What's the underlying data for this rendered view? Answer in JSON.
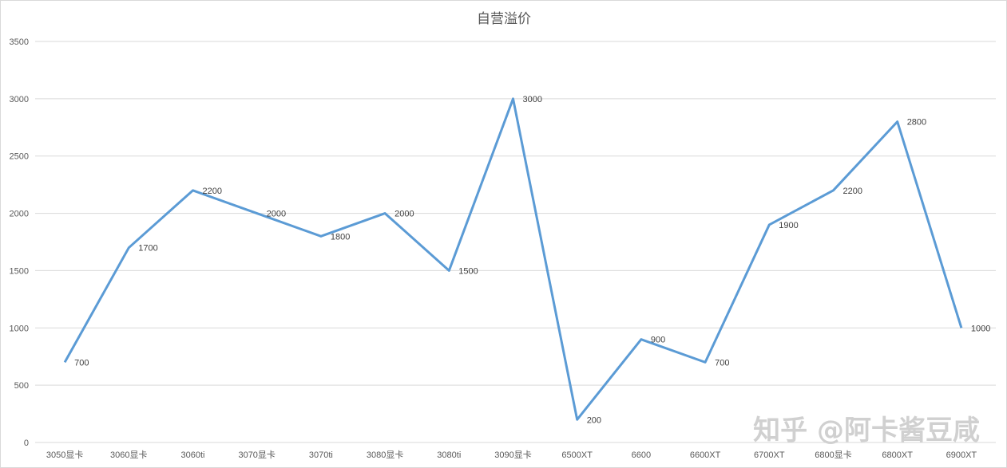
{
  "chart_data": {
    "type": "line",
    "title": "自营溢价",
    "categories": [
      "3050显卡",
      "3060显卡",
      "3060ti",
      "3070显卡",
      "3070ti",
      "3080显卡",
      "3080ti",
      "3090显卡",
      "6500XT",
      "6600",
      "6600XT",
      "6700XT",
      "6800显卡",
      "6800XT",
      "6900XT"
    ],
    "values": [
      700,
      1700,
      2200,
      2000,
      1800,
      2000,
      1500,
      3000,
      200,
      900,
      700,
      1900,
      2200,
      2800,
      1000
    ],
    "ylim": [
      0,
      3500
    ],
    "yticks": [
      0,
      500,
      1000,
      1500,
      2000,
      2500,
      3000,
      3500
    ],
    "grid": true,
    "legend": "none",
    "data_labels": true,
    "line_color": "#5b9bd5"
  },
  "watermark": "知乎 @阿卡酱豆咸"
}
